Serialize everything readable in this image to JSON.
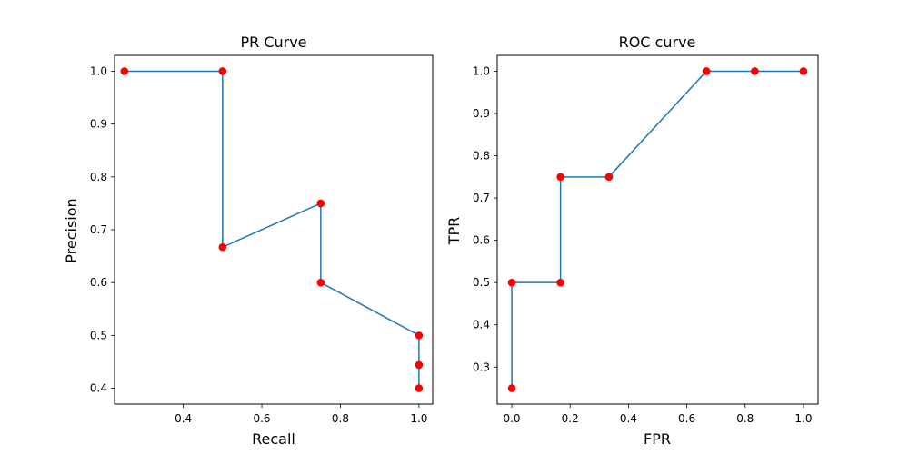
{
  "colors": {
    "line": "#1f77b4",
    "marker": "#ff0000"
  },
  "chart_data": [
    {
      "type": "line",
      "title": "PR Curve",
      "xlabel": "Recall",
      "ylabel": "Precision",
      "xlim": [
        0.225,
        1.035
      ],
      "ylim": [
        0.37,
        1.03
      ],
      "xticks": [
        0.4,
        0.6,
        0.8,
        1.0
      ],
      "xtick_labels": [
        "0.4",
        "0.6",
        "0.8",
        "1.0"
      ],
      "yticks": [
        0.4,
        0.5,
        0.6,
        0.7,
        0.8,
        0.9,
        1.0
      ],
      "ytick_labels": [
        "0.4",
        "0.5",
        "0.6",
        "0.7",
        "0.8",
        "0.9",
        "1.0"
      ],
      "grid": false,
      "markers": true,
      "x": [
        0.25,
        0.5,
        0.5,
        0.75,
        0.75,
        1.0,
        1.0,
        1.0
      ],
      "y": [
        1.0,
        1.0,
        0.667,
        0.75,
        0.6,
        0.5,
        0.444,
        0.4
      ]
    },
    {
      "type": "line",
      "title": "ROC curve",
      "xlabel": "FPR",
      "ylabel": "TPR",
      "xlim": [
        -0.05,
        1.05
      ],
      "ylim": [
        0.2125,
        1.0375
      ],
      "xticks": [
        0.0,
        0.2,
        0.4,
        0.6,
        0.8,
        1.0
      ],
      "xtick_labels": [
        "0.0",
        "0.2",
        "0.4",
        "0.6",
        "0.8",
        "1.0"
      ],
      "yticks": [
        0.3,
        0.4,
        0.5,
        0.6,
        0.7,
        0.8,
        0.9,
        1.0
      ],
      "ytick_labels": [
        "0.3",
        "0.4",
        "0.5",
        "0.6",
        "0.7",
        "0.8",
        "0.9",
        "1.0"
      ],
      "grid": false,
      "markers": true,
      "x": [
        0.0,
        0.0,
        0.167,
        0.167,
        0.333,
        0.667,
        0.667,
        0.833,
        1.0
      ],
      "y": [
        0.25,
        0.5,
        0.5,
        0.75,
        0.75,
        1.0,
        1.0,
        1.0,
        1.0
      ]
    }
  ]
}
